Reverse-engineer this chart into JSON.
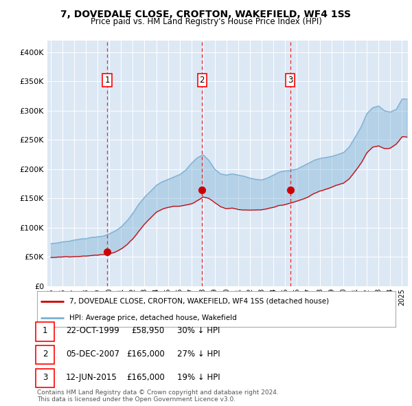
{
  "title": "7, DOVEDALE CLOSE, CROFTON, WAKEFIELD, WF4 1SS",
  "subtitle": "Price paid vs. HM Land Registry's House Price Index (HPI)",
  "ylim": [
    0,
    420000
  ],
  "yticks": [
    0,
    50000,
    100000,
    150000,
    200000,
    250000,
    300000,
    350000,
    400000
  ],
  "ytick_labels": [
    "£0",
    "£50K",
    "£100K",
    "£150K",
    "£200K",
    "£250K",
    "£300K",
    "£350K",
    "£400K"
  ],
  "xlim_min": 1994.7,
  "xlim_max": 2025.5,
  "bg_color": "#dde8f5",
  "grid_color": "#ffffff",
  "red_color": "#cc0000",
  "blue_color": "#7ab0d4",
  "sale_years": [
    1999.81,
    2007.92,
    2015.45
  ],
  "sale_prices": [
    58950,
    165000,
    165000
  ],
  "sale_labels": [
    "1",
    "2",
    "3"
  ],
  "legend_red": "7, DOVEDALE CLOSE, CROFTON, WAKEFIELD, WF4 1SS (detached house)",
  "legend_blue": "HPI: Average price, detached house, Wakefield",
  "table_rows": [
    [
      "1",
      "22-OCT-1999",
      "£58,950",
      "30% ↓ HPI"
    ],
    [
      "2",
      "05-DEC-2007",
      "£165,000",
      "27% ↓ HPI"
    ],
    [
      "3",
      "12-JUN-2015",
      "£165,000",
      "19% ↓ HPI"
    ]
  ],
  "footnote": "Contains HM Land Registry data © Crown copyright and database right 2024.\nThis data is licensed under the Open Government Licence v3.0."
}
